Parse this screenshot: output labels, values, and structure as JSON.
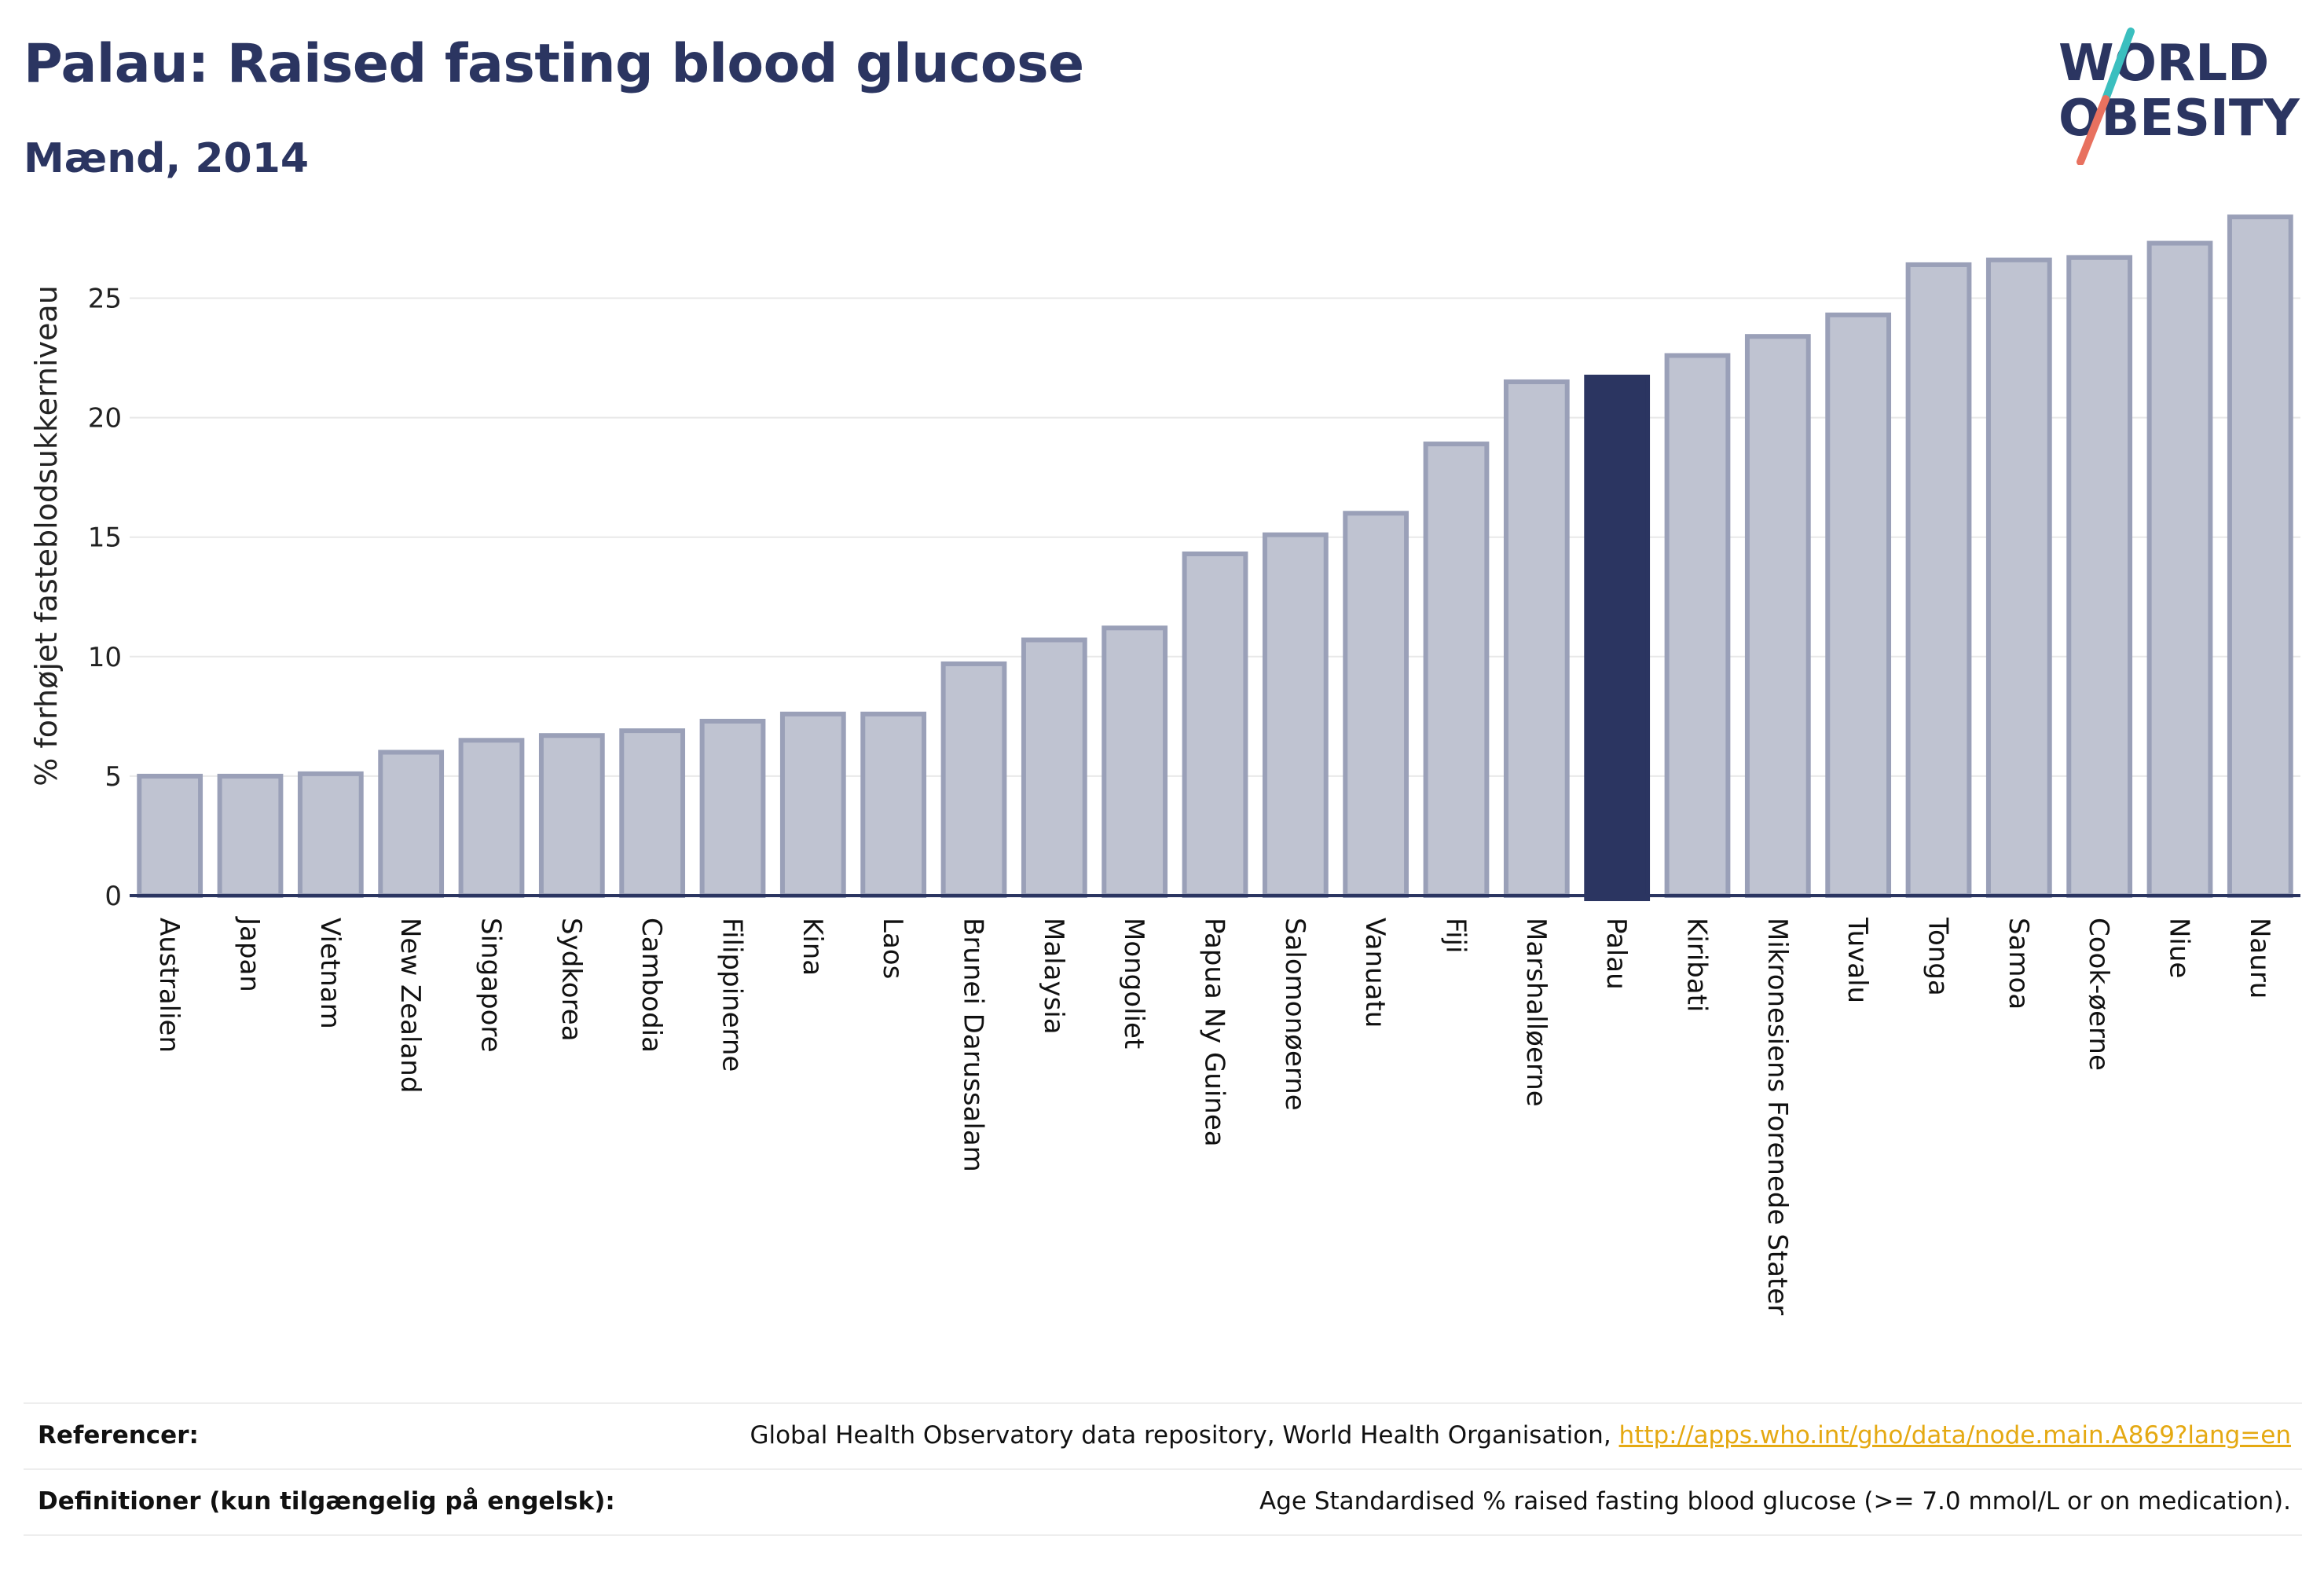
{
  "header": {
    "title": "Palau: Raised fasting blood glucose",
    "subtitle": "Mænd, 2014"
  },
  "logo": {
    "line1": "WORLD",
    "line2": "OBESITY"
  },
  "colors": {
    "bar_fill": "#bfc3d1",
    "bar_stroke": "#9aa0b8",
    "highlight": "#2b3561",
    "grid": "#e8e8e8",
    "axis": "#2b3561"
  },
  "chart_data": {
    "type": "bar",
    "ylabel": "% forhøjet fasteblodsukkerniveau",
    "xlabel": "",
    "ylim": [
      0,
      28.6
    ],
    "yticks": [
      0,
      5,
      10,
      15,
      20,
      25
    ],
    "grid": true,
    "highlight": "Palau",
    "categories": [
      "Australien",
      "Japan",
      "Vietnam",
      "New Zealand",
      "Singapore",
      "Sydkorea",
      "Cambodia",
      "Filippinerne",
      "Kina",
      "Laos",
      "Brunei Darussalam",
      "Malaysia",
      "Mongoliet",
      "Papua Ny Guinea",
      "Salomonøerne",
      "Vanuatu",
      "Fiji",
      "Marshalløerne",
      "Palau",
      "Kiribati",
      "Mikronesiens Forenede Stater",
      "Tuvalu",
      "Tonga",
      "Samoa",
      "Cook-øerne",
      "Niue",
      "Nauru"
    ],
    "values": [
      5.0,
      5.0,
      5.1,
      6.0,
      6.5,
      6.7,
      6.9,
      7.3,
      7.6,
      7.6,
      9.7,
      10.7,
      11.2,
      14.3,
      15.1,
      16.0,
      18.9,
      21.5,
      21.7,
      22.6,
      23.4,
      24.3,
      26.4,
      26.6,
      26.7,
      27.3,
      28.4
    ]
  },
  "footer": {
    "references_label": "Referencer:",
    "references_text": "Global Health Observatory data repository, World Health Organisation, ",
    "references_link": "http://apps.who.int/gho/data/node.main.A869?lang=en",
    "definitions_label": "Definitioner (kun tilgængelig på engelsk):",
    "definitions_text": "Age Standardised % raised fasting blood glucose (>= 7.0 mmol/L or on medication)."
  }
}
